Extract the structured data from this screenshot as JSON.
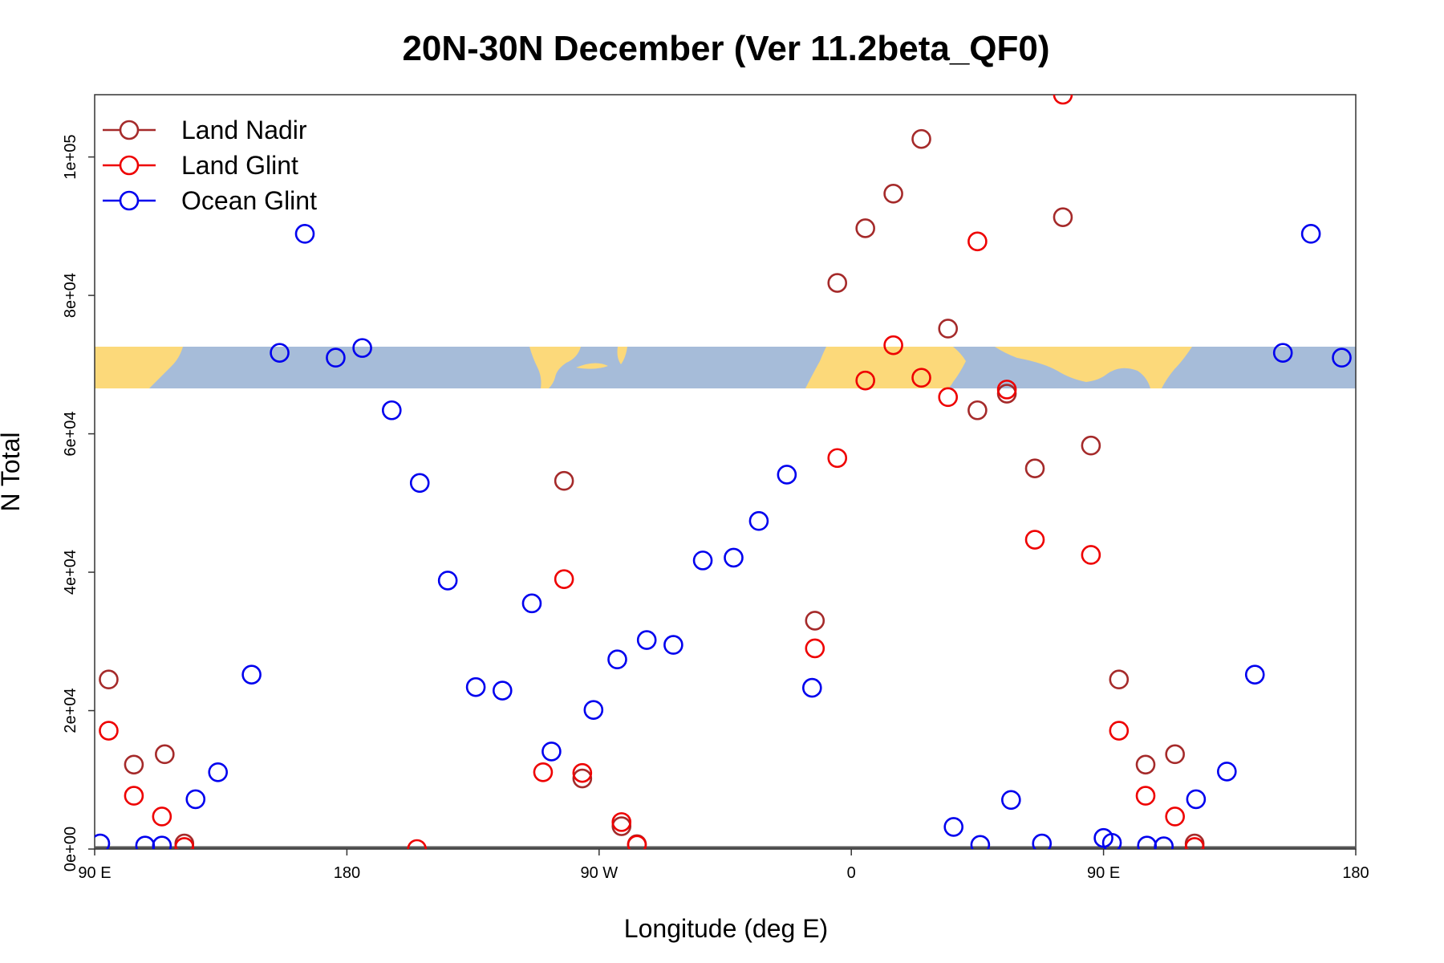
{
  "chart_data": {
    "type": "scatter",
    "title": "20N-30N December (Ver 11.2beta_QF0)",
    "xlabel": "Longitude (deg E)",
    "ylabel": "N Total",
    "xlim": [
      90,
      540
    ],
    "ylim": [
      0,
      109000
    ],
    "x_ticks": [
      {
        "value": 90,
        "label": "90 E"
      },
      {
        "value": 180,
        "label": "180"
      },
      {
        "value": 270,
        "label": "90 W"
      },
      {
        "value": 360,
        "label": "0"
      },
      {
        "value": 450,
        "label": "90 E"
      },
      {
        "value": 540,
        "label": "180"
      }
    ],
    "y_ticks": [
      {
        "value": 0,
        "label": "0e+00"
      },
      {
        "value": 20000,
        "label": "2e+04"
      },
      {
        "value": 40000,
        "label": "4e+04"
      },
      {
        "value": 60000,
        "label": "6e+04"
      },
      {
        "value": 80000,
        "label": "8e+04"
      },
      {
        "value": 100000,
        "label": "1e+05"
      }
    ],
    "legend_position": "top-left",
    "background_band": {
      "description": "world map strip 20N-30N",
      "y_range": [
        66500,
        72500
      ],
      "ocean_color": "#a6bcd9",
      "land_color": "#fcd97a"
    },
    "series": [
      {
        "name": "Land Nadir",
        "color": "#a52a2a",
        "points": [
          [
            95,
            24500
          ],
          [
            104,
            12200
          ],
          [
            115,
            13700
          ],
          [
            122,
            800
          ],
          [
            257.5,
            53200
          ],
          [
            264,
            10200
          ],
          [
            278,
            3300
          ],
          [
            283.5,
            700
          ],
          [
            347,
            33000
          ],
          [
            355,
            81800
          ],
          [
            365,
            89700
          ],
          [
            375,
            94700
          ],
          [
            385,
            102600
          ],
          [
            394.5,
            75200
          ],
          [
            405,
            63400
          ],
          [
            415.5,
            65800
          ],
          [
            425.5,
            55000
          ],
          [
            435.5,
            91300
          ],
          [
            445.5,
            58300
          ],
          [
            455.5,
            24500
          ],
          [
            465,
            12200
          ],
          [
            475.5,
            13700
          ],
          [
            482.5,
            800
          ]
        ]
      },
      {
        "name": "Land Glint",
        "color": "#ee0000",
        "points": [
          [
            95,
            17100
          ],
          [
            104,
            7700
          ],
          [
            114,
            4700
          ],
          [
            122,
            300
          ],
          [
            205,
            0
          ],
          [
            250,
            11100
          ],
          [
            257.5,
            39000
          ],
          [
            264,
            11000
          ],
          [
            278,
            3900
          ],
          [
            283.5,
            600
          ],
          [
            347,
            29000
          ],
          [
            355,
            56500
          ],
          [
            365,
            67700
          ],
          [
            375,
            72800
          ],
          [
            385,
            68100
          ],
          [
            394.5,
            65300
          ],
          [
            405,
            87800
          ],
          [
            415.5,
            66400
          ],
          [
            425.5,
            44700
          ],
          [
            435.5,
            109000
          ],
          [
            445.5,
            42500
          ],
          [
            455.5,
            17100
          ],
          [
            465,
            7700
          ],
          [
            475.5,
            4700
          ],
          [
            482.5,
            300
          ]
        ]
      },
      {
        "name": "Ocean Glint",
        "color": "#0000ee",
        "points": [
          [
            92,
            800
          ],
          [
            108,
            500
          ],
          [
            114,
            500
          ],
          [
            126,
            7200
          ],
          [
            134,
            11100
          ],
          [
            146,
            25200
          ],
          [
            156,
            71700
          ],
          [
            165,
            88900
          ],
          [
            176,
            71000
          ],
          [
            185.5,
            72400
          ],
          [
            196,
            63400
          ],
          [
            206,
            52900
          ],
          [
            216,
            38800
          ],
          [
            226,
            23400
          ],
          [
            235.5,
            22900
          ],
          [
            246,
            35500
          ],
          [
            253,
            14100
          ],
          [
            268,
            20100
          ],
          [
            276.5,
            27400
          ],
          [
            287,
            30200
          ],
          [
            296.5,
            29500
          ],
          [
            307,
            41700
          ],
          [
            318,
            42100
          ],
          [
            327,
            47400
          ],
          [
            337,
            54100
          ],
          [
            346,
            23300
          ],
          [
            396.5,
            3200
          ],
          [
            406,
            600
          ],
          [
            417,
            7100
          ],
          [
            428,
            800
          ],
          [
            450,
            1600
          ],
          [
            453,
            900
          ],
          [
            465.5,
            500
          ],
          [
            471.5,
            400
          ],
          [
            483,
            7200
          ],
          [
            494,
            11200
          ],
          [
            504,
            25200
          ],
          [
            514,
            71700
          ],
          [
            524,
            88900
          ],
          [
            535,
            71000
          ]
        ]
      }
    ]
  }
}
